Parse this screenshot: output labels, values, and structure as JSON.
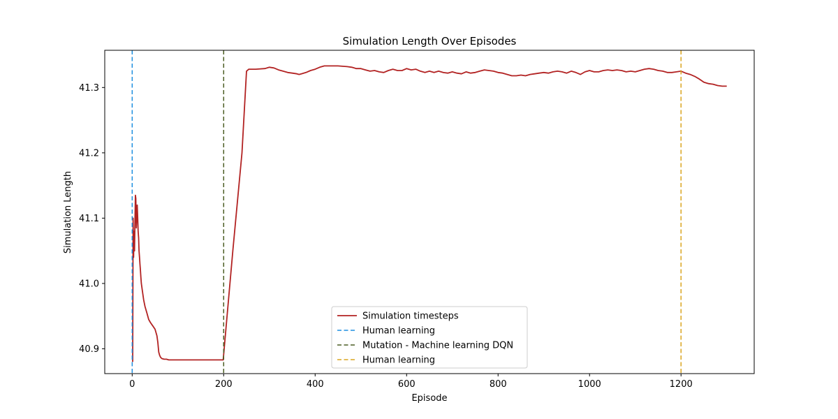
{
  "chart_data": {
    "type": "line",
    "title": "Simulation Length Over Episodes",
    "xlabel": "Episode",
    "ylabel": "Simulation Length",
    "xlim": [
      -60,
      1360
    ],
    "ylim": [
      40.862,
      41.357
    ],
    "xticks": [
      0,
      200,
      400,
      600,
      800,
      1000,
      1200
    ],
    "yticks": [
      40.9,
      41.0,
      41.1,
      41.2,
      41.3
    ],
    "ytick_labels": [
      "40.9",
      "41.0",
      "41.1",
      "41.2",
      "41.3"
    ],
    "grid": false,
    "legend_position": "lower-center",
    "series": [
      {
        "name": "Simulation timesteps",
        "color": "#b22222",
        "style": "solid",
        "x": [
          1,
          2,
          3,
          4,
          5,
          6,
          7,
          8,
          9,
          10,
          11,
          12,
          13,
          14,
          15,
          16,
          17,
          18,
          19,
          20,
          22,
          25,
          28,
          32,
          36,
          40,
          45,
          50,
          54,
          56,
          58,
          60,
          62,
          65,
          70,
          75,
          80,
          100,
          150,
          199,
          220,
          240,
          250,
          255,
          270,
          290,
          300,
          310,
          320,
          330,
          340,
          350,
          360,
          365,
          370,
          380,
          390,
          400,
          410,
          420,
          430,
          450,
          470,
          480,
          490,
          500,
          510,
          520,
          530,
          540,
          550,
          560,
          570,
          580,
          590,
          600,
          610,
          620,
          630,
          640,
          650,
          660,
          670,
          680,
          690,
          700,
          710,
          720,
          730,
          740,
          750,
          760,
          770,
          780,
          790,
          800,
          810,
          820,
          830,
          840,
          850,
          860,
          870,
          880,
          890,
          900,
          910,
          920,
          930,
          940,
          950,
          960,
          970,
          980,
          990,
          1000,
          1010,
          1020,
          1030,
          1040,
          1050,
          1060,
          1070,
          1080,
          1090,
          1100,
          1110,
          1120,
          1130,
          1140,
          1150,
          1160,
          1170,
          1180,
          1190,
          1200,
          1210,
          1220,
          1230,
          1240,
          1250,
          1260,
          1270,
          1280,
          1290,
          1300
        ],
        "y": [
          40.88,
          41.1,
          41.04,
          41.08,
          41.05,
          41.09,
          41.135,
          41.13,
          41.085,
          41.1,
          41.12,
          41.1,
          41.08,
          41.07,
          41.05,
          41.04,
          41.03,
          41.02,
          41.01,
          41.0,
          40.99,
          40.975,
          40.965,
          40.955,
          40.945,
          40.94,
          40.935,
          40.93,
          40.92,
          40.91,
          40.895,
          40.89,
          40.887,
          40.885,
          40.884,
          40.884,
          40.883,
          40.883,
          40.883,
          40.883,
          41.05,
          41.2,
          41.325,
          41.328,
          41.328,
          41.329,
          41.331,
          41.33,
          41.327,
          41.325,
          41.323,
          41.322,
          41.321,
          41.32,
          41.321,
          41.323,
          41.326,
          41.328,
          41.331,
          41.333,
          41.333,
          41.333,
          41.332,
          41.331,
          41.329,
          41.329,
          41.327,
          41.325,
          41.326,
          41.324,
          41.323,
          41.326,
          41.328,
          41.326,
          41.326,
          41.329,
          41.327,
          41.328,
          41.325,
          41.323,
          41.325,
          41.323,
          41.325,
          41.323,
          41.322,
          41.324,
          41.322,
          41.321,
          41.324,
          41.322,
          41.323,
          41.325,
          41.327,
          41.326,
          41.325,
          41.323,
          41.322,
          41.32,
          41.318,
          41.318,
          41.319,
          41.318,
          41.32,
          41.321,
          41.322,
          41.323,
          41.322,
          41.324,
          41.325,
          41.324,
          41.322,
          41.325,
          41.323,
          41.32,
          41.324,
          41.326,
          41.324,
          41.324,
          41.326,
          41.327,
          41.326,
          41.327,
          41.326,
          41.324,
          41.325,
          41.324,
          41.326,
          41.328,
          41.329,
          41.328,
          41.326,
          41.325,
          41.323,
          41.323,
          41.324,
          41.325,
          41.322,
          41.32,
          41.317,
          41.313,
          41.308,
          41.306,
          41.305,
          41.303,
          41.302,
          41.302
        ]
      },
      {
        "name": "Human learning",
        "color": "#1f8fe0",
        "style": "dashed",
        "vline": 0
      },
      {
        "name": "Mutation - Machine learning DQN",
        "color": "#4b5d23",
        "style": "dashed",
        "vline": 200
      },
      {
        "name": "Human learning",
        "color": "#daa520",
        "style": "dashed",
        "vline": 1200
      }
    ]
  }
}
